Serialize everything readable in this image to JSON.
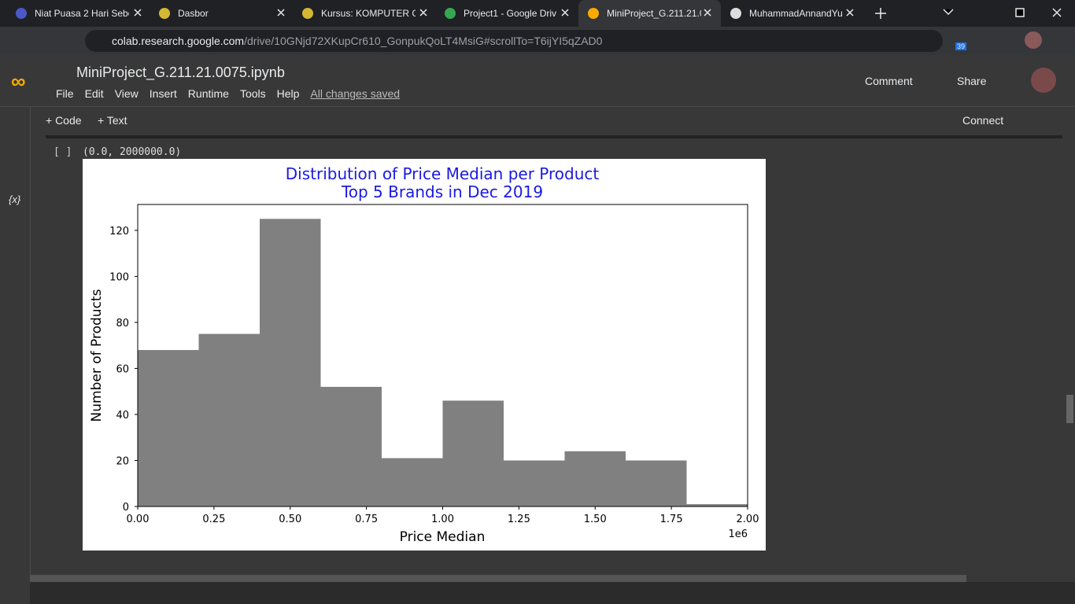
{
  "browser": {
    "tabs": [
      "Niat Puasa 2 Hari Sebe",
      "Dasbor",
      "Kursus: KOMPUTER GI",
      "Project1 - Google Driv",
      "MiniProject_G.211.21.0",
      "MuhammadAnnandYu"
    ],
    "url_host": "colab.research.google.com",
    "url_path": "/drive/10GNjd72XKupCr610_GonpukQoLT4MsiG#scrollTo=T6ijYI5qZAD0",
    "badge": "39"
  },
  "colab": {
    "notebook_title": "MiniProject_G.211.21.0075.ipynb",
    "menu": [
      "File",
      "Edit",
      "View",
      "Insert",
      "Runtime",
      "Tools",
      "Help"
    ],
    "save_status": "All changes saved",
    "comment": "Comment",
    "share": "Share",
    "add_code": "+ Code",
    "add_text": "+ Text",
    "connect": "Connect",
    "variables_icon": "{x}",
    "cell_bracket": "[ ]",
    "cell_output": "(0.0, 2000000.0)"
  },
  "chart_data": {
    "type": "histogram",
    "title": "Distribution of Price Median per Product",
    "subtitle": "Top 5 Brands in Dec 2019",
    "xlabel": "Price Median",
    "ylabel": "Number of Products",
    "x_scale_label": "1e6",
    "color": "#808080",
    "bins": [
      0,
      200000,
      400000,
      600000,
      800000,
      1000000,
      1200000,
      1400000,
      1600000,
      1800000,
      2000000
    ],
    "counts": [
      68,
      75,
      125,
      52,
      21,
      46,
      20,
      24,
      20,
      1
    ],
    "xlim": [
      0,
      2000000
    ],
    "xticks": [
      {
        "value": 0,
        "label": "0.00"
      },
      {
        "value": 250000,
        "label": "0.25"
      },
      {
        "value": 500000,
        "label": "0.50"
      },
      {
        "value": 750000,
        "label": "0.75"
      },
      {
        "value": 1000000,
        "label": "1.00"
      },
      {
        "value": 1250000,
        "label": "1.25"
      },
      {
        "value": 1500000,
        "label": "1.50"
      },
      {
        "value": 1750000,
        "label": "1.75"
      },
      {
        "value": 2000000,
        "label": "2.00"
      }
    ],
    "ylim": [
      0,
      131.25
    ],
    "yticks": [
      0,
      20,
      40,
      60,
      80,
      100,
      120
    ]
  }
}
